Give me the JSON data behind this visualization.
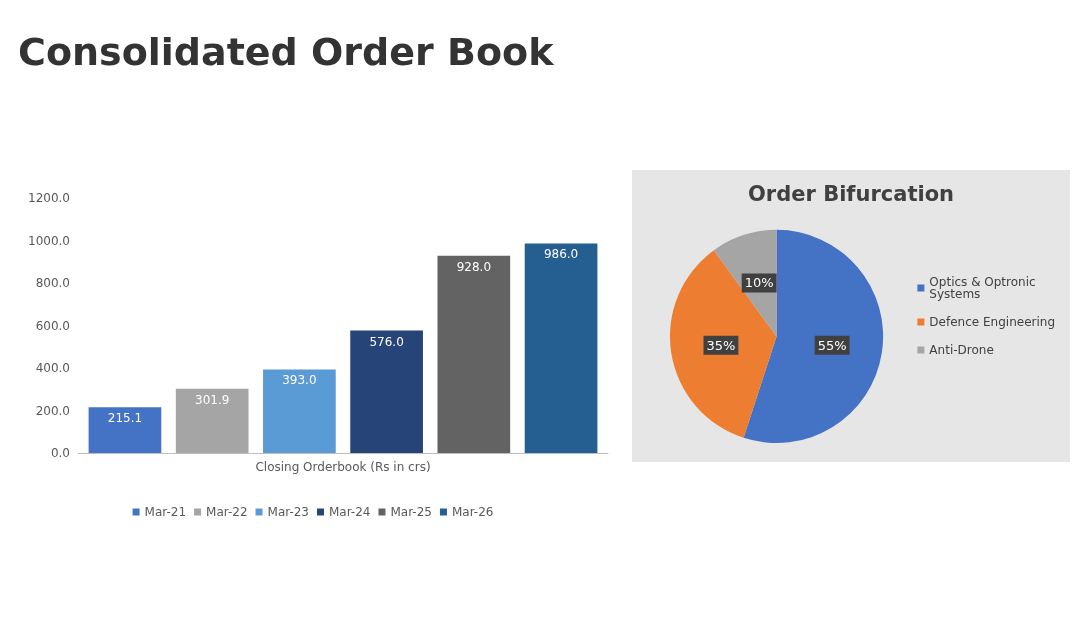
{
  "chart_data": [
    {
      "type": "bar",
      "title": "Consolidated Order Book",
      "categories": [
        "Closing Orderbook (Rs in crs)"
      ],
      "series": [
        {
          "name": "Mar-21",
          "color": "#4472c4",
          "values": [
            215.1
          ],
          "value_labels": [
            "215.1"
          ]
        },
        {
          "name": "Mar-22",
          "color": "#a5a5a5",
          "values": [
            301.9
          ],
          "value_labels": [
            "301.9"
          ]
        },
        {
          "name": "Mar-23",
          "color": "#5b9bd5",
          "values": [
            393.0
          ],
          "value_labels": [
            "393.0"
          ]
        },
        {
          "name": "Mar-24",
          "color": "#264478",
          "values": [
            576.0
          ],
          "value_labels": [
            "576.0"
          ]
        },
        {
          "name": "Mar-25",
          "color": "#636363",
          "values": [
            928.0
          ],
          "value_labels": [
            "928.0"
          ]
        },
        {
          "name": "Mar-26",
          "color": "#255e91",
          "values": [
            986.0
          ],
          "value_labels": [
            "986.0"
          ]
        }
      ],
      "ylim": [
        0,
        1200
      ],
      "yticks": [
        {
          "value": 0,
          "label": "0.0"
        },
        {
          "value": 200,
          "label": "200.0"
        },
        {
          "value": 400,
          "label": "400.0"
        },
        {
          "value": 600,
          "label": "600.0"
        },
        {
          "value": 800,
          "label": "800.0"
        },
        {
          "value": 1000,
          "label": "1000.0"
        },
        {
          "value": 1200,
          "label": "1200.0"
        }
      ],
      "grid": false,
      "legend": "bottom"
    },
    {
      "type": "pie",
      "title": "Order Bifurcation",
      "categories": [
        "Optics & Optronic Systems",
        "Defence Engineering",
        "Anti-Drone"
      ],
      "values": [
        55,
        35,
        10
      ],
      "colors": [
        "#4472c4",
        "#ed7d31",
        "#a5a5a5"
      ],
      "value_labels": [
        "55%",
        "35%",
        "10%"
      ],
      "legend": "right"
    }
  ]
}
